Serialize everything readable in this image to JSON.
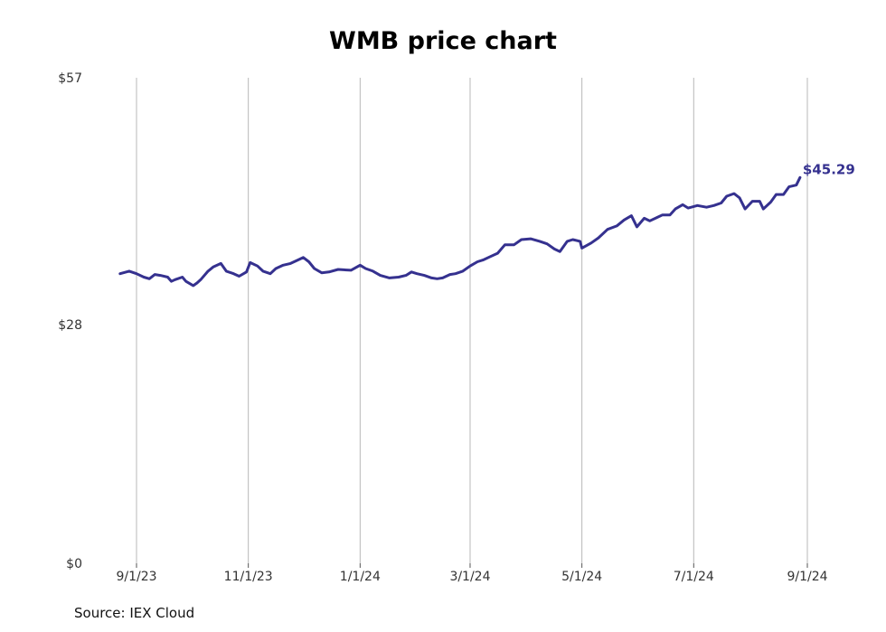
{
  "chart_data": {
    "type": "line",
    "title": "WMB price chart",
    "source": "Source: IEX Cloud",
    "ylim": [
      0,
      57
    ],
    "y_ticks": [
      {
        "value": 0,
        "label": "$0"
      },
      {
        "value": 28,
        "label": "$28"
      },
      {
        "value": 57,
        "label": "$57"
      }
    ],
    "x_ticks": [
      {
        "date": "2023-09-01",
        "label": "9/1/23"
      },
      {
        "date": "2023-11-01",
        "label": "11/1/23"
      },
      {
        "date": "2024-01-01",
        "label": "1/1/24"
      },
      {
        "date": "2024-03-01",
        "label": "3/1/24"
      },
      {
        "date": "2024-05-01",
        "label": "5/1/24"
      },
      {
        "date": "2024-07-01",
        "label": "7/1/24"
      },
      {
        "date": "2024-09-01",
        "label": "9/1/24"
      }
    ],
    "xlim": [
      "2023-08-23",
      "2024-09-13"
    ],
    "grid": "vertical",
    "line_color": "#35318f",
    "end_label": "$45.29",
    "series": [
      {
        "points": [
          [
            "2023-08-23",
            34.0
          ],
          [
            "2023-08-28",
            34.3
          ],
          [
            "2023-09-01",
            34.0
          ],
          [
            "2023-09-05",
            33.6
          ],
          [
            "2023-09-08",
            33.4
          ],
          [
            "2023-09-11",
            33.9
          ],
          [
            "2023-09-14",
            33.8
          ],
          [
            "2023-09-18",
            33.6
          ],
          [
            "2023-09-20",
            33.1
          ],
          [
            "2023-09-22",
            33.3
          ],
          [
            "2023-09-26",
            33.6
          ],
          [
            "2023-09-28",
            33.1
          ],
          [
            "2023-10-02",
            32.6
          ],
          [
            "2023-10-04",
            32.9
          ],
          [
            "2023-10-06",
            33.3
          ],
          [
            "2023-10-10",
            34.3
          ],
          [
            "2023-10-13",
            34.8
          ],
          [
            "2023-10-17",
            35.2
          ],
          [
            "2023-10-20",
            34.3
          ],
          [
            "2023-10-24",
            34.0
          ],
          [
            "2023-10-27",
            33.7
          ],
          [
            "2023-10-31",
            34.2
          ],
          [
            "2023-11-02",
            35.3
          ],
          [
            "2023-11-06",
            34.9
          ],
          [
            "2023-11-09",
            34.3
          ],
          [
            "2023-11-13",
            34.0
          ],
          [
            "2023-11-16",
            34.6
          ],
          [
            "2023-11-20",
            35.0
          ],
          [
            "2023-11-24",
            35.2
          ],
          [
            "2023-11-28",
            35.6
          ],
          [
            "2023-12-01",
            35.9
          ],
          [
            "2023-12-04",
            35.4
          ],
          [
            "2023-12-07",
            34.6
          ],
          [
            "2023-12-11",
            34.1
          ],
          [
            "2023-12-15",
            34.2
          ],
          [
            "2023-12-20",
            34.5
          ],
          [
            "2023-12-27",
            34.4
          ],
          [
            "2024-01-01",
            35.0
          ],
          [
            "2024-01-04",
            34.6
          ],
          [
            "2024-01-08",
            34.3
          ],
          [
            "2024-01-12",
            33.8
          ],
          [
            "2024-01-17",
            33.5
          ],
          [
            "2024-01-22",
            33.6
          ],
          [
            "2024-01-26",
            33.8
          ],
          [
            "2024-01-29",
            34.2
          ],
          [
            "2024-02-01",
            34.0
          ],
          [
            "2024-02-05",
            33.8
          ],
          [
            "2024-02-09",
            33.5
          ],
          [
            "2024-02-12",
            33.4
          ],
          [
            "2024-02-15",
            33.5
          ],
          [
            "2024-02-19",
            33.9
          ],
          [
            "2024-02-22",
            34.0
          ],
          [
            "2024-02-26",
            34.3
          ],
          [
            "2024-03-01",
            34.9
          ],
          [
            "2024-03-05",
            35.4
          ],
          [
            "2024-03-08",
            35.6
          ],
          [
            "2024-03-12",
            36.0
          ],
          [
            "2024-03-16",
            36.4
          ],
          [
            "2024-03-20",
            37.4
          ],
          [
            "2024-03-25",
            37.4
          ],
          [
            "2024-03-29",
            38.0
          ],
          [
            "2024-04-03",
            38.1
          ],
          [
            "2024-04-08",
            37.8
          ],
          [
            "2024-04-12",
            37.5
          ],
          [
            "2024-04-16",
            36.9
          ],
          [
            "2024-04-19",
            36.6
          ],
          [
            "2024-04-23",
            37.8
          ],
          [
            "2024-04-26",
            38.0
          ],
          [
            "2024-04-30",
            37.8
          ],
          [
            "2024-05-01",
            37.0
          ],
          [
            "2024-05-06",
            37.6
          ],
          [
            "2024-05-10",
            38.2
          ],
          [
            "2024-05-15",
            39.2
          ],
          [
            "2024-05-20",
            39.6
          ],
          [
            "2024-05-24",
            40.3
          ],
          [
            "2024-05-28",
            40.8
          ],
          [
            "2024-05-31",
            39.5
          ],
          [
            "2024-06-04",
            40.5
          ],
          [
            "2024-06-07",
            40.2
          ],
          [
            "2024-06-11",
            40.6
          ],
          [
            "2024-06-14",
            40.9
          ],
          [
            "2024-06-18",
            40.9
          ],
          [
            "2024-06-21",
            41.6
          ],
          [
            "2024-06-25",
            42.1
          ],
          [
            "2024-06-28",
            41.7
          ],
          [
            "2024-07-03",
            42.0
          ],
          [
            "2024-07-08",
            41.8
          ],
          [
            "2024-07-12",
            42.0
          ],
          [
            "2024-07-16",
            42.3
          ],
          [
            "2024-07-19",
            43.1
          ],
          [
            "2024-07-23",
            43.4
          ],
          [
            "2024-07-26",
            42.9
          ],
          [
            "2024-07-29",
            41.6
          ],
          [
            "2024-08-02",
            42.5
          ],
          [
            "2024-08-06",
            42.5
          ],
          [
            "2024-08-08",
            41.6
          ],
          [
            "2024-08-12",
            42.4
          ],
          [
            "2024-08-15",
            43.3
          ],
          [
            "2024-08-19",
            43.3
          ],
          [
            "2024-08-22",
            44.2
          ],
          [
            "2024-08-26",
            44.4
          ],
          [
            "2024-08-28",
            45.29
          ]
        ]
      }
    ]
  }
}
